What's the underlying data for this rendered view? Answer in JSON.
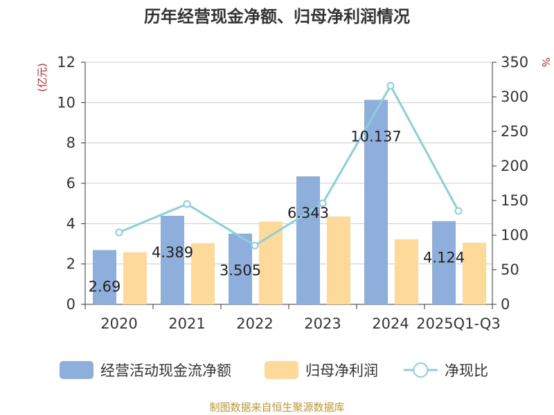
{
  "chart_data": {
    "type": "bar",
    "title": "历年经营现金净额、归母净利润情况",
    "categories": [
      "2020",
      "2021",
      "2022",
      "2023",
      "2024",
      "2025Q1-Q3"
    ],
    "left_axis": {
      "unit": "(亿元)",
      "min": 0,
      "max": 12,
      "ticks": [
        "0",
        "2",
        "4",
        "6",
        "8",
        "10",
        "12"
      ]
    },
    "right_axis": {
      "unit": "%",
      "min": 0,
      "max": 350,
      "ticks": [
        "0",
        "50",
        "100",
        "150",
        "200",
        "250",
        "300",
        "350"
      ]
    },
    "series": [
      {
        "name": "经营活动现金流净额",
        "kind": "bar",
        "axis": "left",
        "color": "#8eaedb",
        "values": [
          2.69,
          4.389,
          3.505,
          6.343,
          10.137,
          4.124
        ],
        "labels": [
          "2.69",
          "4.389",
          "3.505",
          "6.343",
          "10.137",
          "4.124"
        ]
      },
      {
        "name": "归母净利润",
        "kind": "bar",
        "axis": "left",
        "color": "#fdd99a",
        "values": [
          2.58,
          3.03,
          4.1,
          4.35,
          3.22,
          3.05
        ]
      },
      {
        "name": "净现比",
        "kind": "line",
        "axis": "right",
        "color": "#88d1d8",
        "values": [
          104,
          145,
          85,
          146,
          316,
          135
        ]
      }
    ],
    "source": "制图数据来自恒生聚源数据库"
  }
}
